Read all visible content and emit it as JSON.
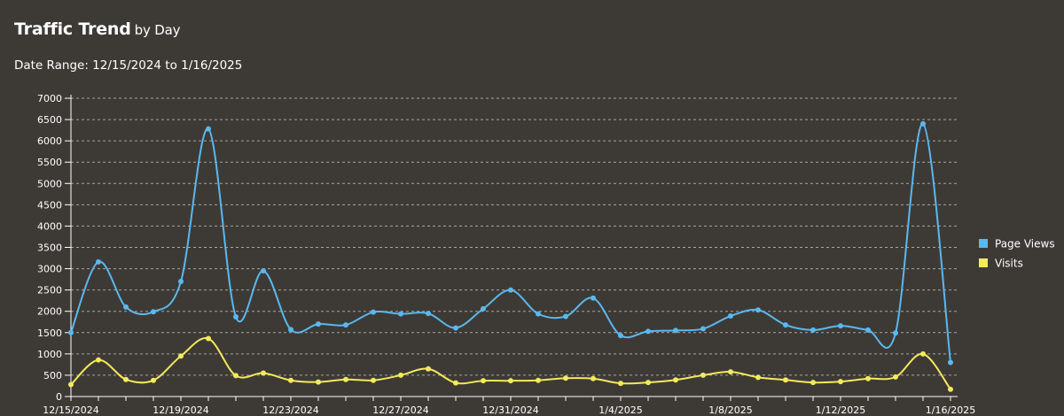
{
  "header": {
    "title": "Traffic Trend",
    "title_suffix": "by Day",
    "subtitle": "Date Range: 12/15/2024 to 1/16/2025"
  },
  "colors": {
    "background": "#3d3a36",
    "page_views": "#5ab8f0",
    "visits": "#f5ea5a",
    "grid": "#a8a6a2",
    "axis": "#ffffff"
  },
  "chart_data": {
    "type": "line",
    "x": [
      "12/15/2024",
      "12/16/2024",
      "12/17/2024",
      "12/18/2024",
      "12/19/2024",
      "12/20/2024",
      "12/21/2024",
      "12/22/2024",
      "12/23/2024",
      "12/24/2024",
      "12/25/2024",
      "12/26/2024",
      "12/27/2024",
      "12/28/2024",
      "12/29/2024",
      "12/30/2024",
      "12/31/2024",
      "1/1/2025",
      "1/2/2025",
      "1/3/2025",
      "1/4/2025",
      "1/5/2025",
      "1/6/2025",
      "1/7/2025",
      "1/8/2025",
      "1/9/2025",
      "1/10/2025",
      "1/11/2025",
      "1/12/2025",
      "1/13/2025",
      "1/14/2025",
      "1/15/2025",
      "1/16/2025"
    ],
    "x_tick_labels": [
      "12/15/2024",
      "12/19/2024",
      "12/23/2024",
      "12/27/2024",
      "12/31/2024",
      "1/4/2025",
      "1/8/2025",
      "1/12/2025",
      "1/16/2025"
    ],
    "series": [
      {
        "name": "Page Views",
        "color": "#5ab8f0",
        "values": [
          1500,
          3160,
          2100,
          1990,
          2700,
          6280,
          1870,
          2950,
          1570,
          1700,
          1680,
          1980,
          1940,
          1950,
          1610,
          2060,
          2500,
          1940,
          1880,
          2310,
          1430,
          1530,
          1550,
          1590,
          1890,
          2030,
          1680,
          1560,
          1660,
          1560,
          1490,
          6400,
          800
        ]
      },
      {
        "name": "Visits",
        "color": "#f5ea5a",
        "values": [
          280,
          860,
          400,
          380,
          950,
          1360,
          490,
          550,
          380,
          340,
          400,
          380,
          500,
          650,
          320,
          370,
          370,
          380,
          430,
          420,
          310,
          330,
          390,
          500,
          580,
          450,
          390,
          330,
          350,
          420,
          460,
          1000,
          170
        ]
      }
    ],
    "ylim": [
      0,
      7000
    ],
    "y_ticks": [
      0,
      500,
      1000,
      1500,
      2000,
      2500,
      3000,
      3500,
      4000,
      4500,
      5000,
      5500,
      6000,
      6500,
      7000
    ],
    "xlabel": "",
    "ylabel": "",
    "grid": true,
    "legend_position": "right"
  }
}
